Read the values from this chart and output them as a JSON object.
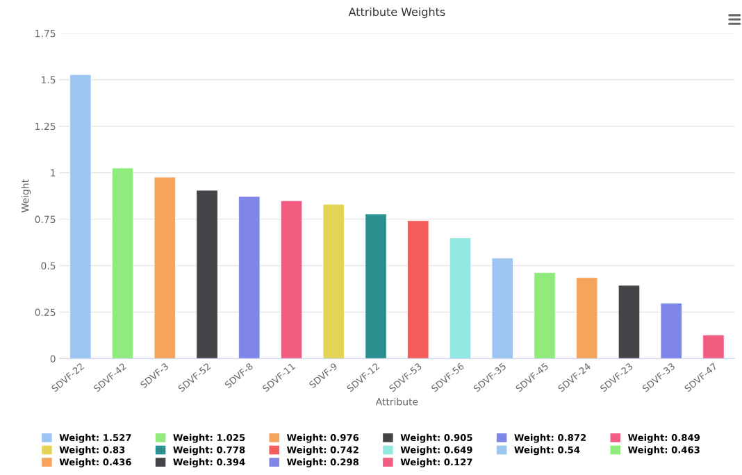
{
  "chart_data": {
    "type": "bar",
    "title": "Attribute Weights",
    "xlabel": "Attribute",
    "ylabel": "Weight",
    "categories": [
      "SDVF-22",
      "SDVF-42",
      "SDVF-3",
      "SDVF-52",
      "SDVF-8",
      "SDVF-11",
      "SDVF-9",
      "SDVF-12",
      "SDVF-53",
      "SDVF-56",
      "SDVF-35",
      "SDVF-45",
      "SDVF-24",
      "SDVF-23",
      "SDVF-33",
      "SDVF-47"
    ],
    "series": [
      {
        "name": "Weight: 1.527",
        "color": "#9cc5f2",
        "values": [
          1.527,
          null,
          null,
          null,
          null,
          null,
          null,
          null,
          null,
          null,
          null,
          null,
          null,
          null,
          null,
          null
        ]
      },
      {
        "name": "Weight: 1.025",
        "color": "#90eb7c",
        "values": [
          null,
          1.025,
          null,
          null,
          null,
          null,
          null,
          null,
          null,
          null,
          null,
          null,
          null,
          null,
          null,
          null
        ]
      },
      {
        "name": "Weight: 0.976",
        "color": "#f6a45c",
        "values": [
          null,
          null,
          0.976,
          null,
          null,
          null,
          null,
          null,
          null,
          null,
          null,
          null,
          null,
          null,
          null,
          null
        ]
      },
      {
        "name": "Weight: 0.905",
        "color": "#434348",
        "values": [
          null,
          null,
          null,
          0.905,
          null,
          null,
          null,
          null,
          null,
          null,
          null,
          null,
          null,
          null,
          null,
          null
        ]
      },
      {
        "name": "Weight: 0.872",
        "color": "#8085e8",
        "values": [
          null,
          null,
          null,
          null,
          0.872,
          null,
          null,
          null,
          null,
          null,
          null,
          null,
          null,
          null,
          null,
          null
        ]
      },
      {
        "name": "Weight: 0.849",
        "color": "#f15c80",
        "values": [
          null,
          null,
          null,
          null,
          null,
          0.849,
          null,
          null,
          null,
          null,
          null,
          null,
          null,
          null,
          null,
          null
        ]
      },
      {
        "name": "Weight: 0.83",
        "color": "#e4d354",
        "values": [
          null,
          null,
          null,
          null,
          null,
          null,
          0.83,
          null,
          null,
          null,
          null,
          null,
          null,
          null,
          null,
          null
        ]
      },
      {
        "name": "Weight: 0.778",
        "color": "#2b908f",
        "values": [
          null,
          null,
          null,
          null,
          null,
          null,
          null,
          0.778,
          null,
          null,
          null,
          null,
          null,
          null,
          null,
          null
        ]
      },
      {
        "name": "Weight: 0.742",
        "color": "#f45b5b",
        "values": [
          null,
          null,
          null,
          null,
          null,
          null,
          null,
          null,
          0.742,
          null,
          null,
          null,
          null,
          null,
          null,
          null
        ]
      },
      {
        "name": "Weight: 0.649",
        "color": "#91e8e1",
        "values": [
          null,
          null,
          null,
          null,
          null,
          null,
          null,
          null,
          null,
          0.649,
          null,
          null,
          null,
          null,
          null,
          null
        ]
      },
      {
        "name": "Weight: 0.54",
        "color": "#9cc5f2",
        "values": [
          null,
          null,
          null,
          null,
          null,
          null,
          null,
          null,
          null,
          null,
          0.54,
          null,
          null,
          null,
          null,
          null
        ]
      },
      {
        "name": "Weight: 0.463",
        "color": "#90eb7c",
        "values": [
          null,
          null,
          null,
          null,
          null,
          null,
          null,
          null,
          null,
          null,
          null,
          0.463,
          null,
          null,
          null,
          null
        ]
      },
      {
        "name": "Weight: 0.436",
        "color": "#f6a45c",
        "values": [
          null,
          null,
          null,
          null,
          null,
          null,
          null,
          null,
          null,
          null,
          null,
          null,
          0.436,
          null,
          null,
          null
        ]
      },
      {
        "name": "Weight: 0.394",
        "color": "#434348",
        "values": [
          null,
          null,
          null,
          null,
          null,
          null,
          null,
          null,
          null,
          null,
          null,
          null,
          null,
          0.394,
          null,
          null
        ]
      },
      {
        "name": "Weight: 0.298",
        "color": "#8085e8",
        "values": [
          null,
          null,
          null,
          null,
          null,
          null,
          null,
          null,
          null,
          null,
          null,
          null,
          null,
          null,
          0.298,
          null
        ]
      },
      {
        "name": "Weight: 0.127",
        "color": "#f15c80",
        "values": [
          null,
          null,
          null,
          null,
          null,
          null,
          null,
          null,
          null,
          null,
          null,
          null,
          null,
          null,
          null,
          0.127
        ]
      }
    ],
    "ylim": [
      0,
      1.75
    ],
    "yticks": [
      0,
      0.25,
      0.5,
      0.75,
      1,
      1.25,
      1.5,
      1.75
    ],
    "grid": "y",
    "legend": "bottom"
  }
}
